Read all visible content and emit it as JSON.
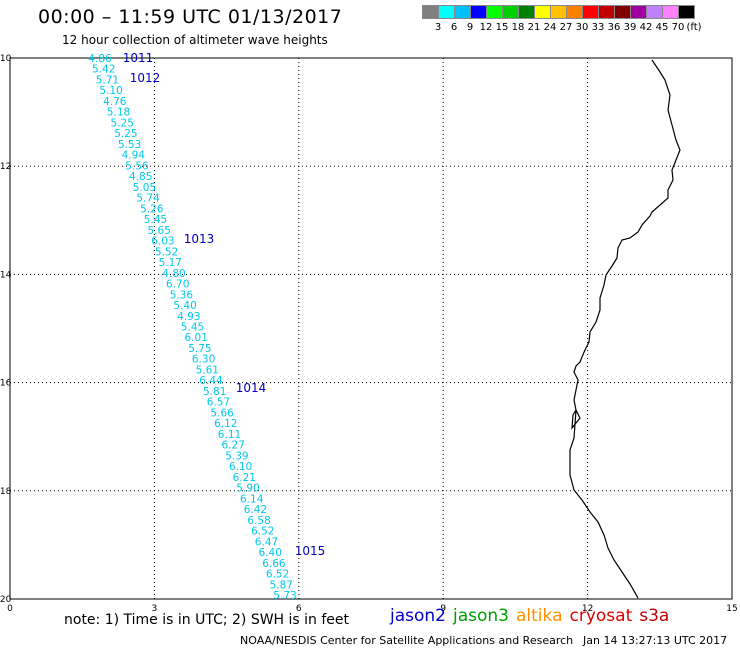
{
  "title": "00:00 – 11:59 UTC 01/13/2017",
  "subtitle": "12 hour collection of altimeter wave heights",
  "colorbar": {
    "colors": [
      "#808080",
      "#00ffff",
      "#00c0ff",
      "#0000ff",
      "#00ff00",
      "#00d000",
      "#008000",
      "#ffff00",
      "#ffc000",
      "#ff8000",
      "#ff0000",
      "#c00000",
      "#800000",
      "#a000a0",
      "#c080ff",
      "#ff80ff",
      "#000000"
    ],
    "labels": [
      "3",
      "6",
      "9",
      "12",
      "15",
      "18",
      "21",
      "24",
      "27",
      "30",
      "33",
      "36",
      "39",
      "42",
      "45",
      "70",
      "(ft)"
    ]
  },
  "axes": {
    "x_ticks": [
      "0",
      "3",
      "6",
      "9",
      "12",
      "15"
    ],
    "y_ticks": [
      "-10",
      "-12",
      "-14",
      "-16",
      "-18",
      "-20"
    ],
    "x_range": [
      0,
      15
    ],
    "y_range": [
      -20,
      -10
    ]
  },
  "track_color": "#00c8e8",
  "time_color": "#0000c0",
  "swh_values": [
    "4.86",
    "5.42",
    "5.71",
    "5.10",
    "4.76",
    "5.18",
    "5.25",
    "5.25",
    "5.53",
    "4.94",
    "5.56",
    "4.85",
    "5.05",
    "5.74",
    "5.26",
    "5.45",
    "5.65",
    "6.03",
    "5.52",
    "5.17",
    "4.80",
    "6.70",
    "5.36",
    "5.40",
    "4.93",
    "5.45",
    "6.01",
    "5.75",
    "6.30",
    "5.61",
    "6.44",
    "5.81",
    "6.57",
    "5.66",
    "6.12",
    "6.11",
    "6.27",
    "5.39",
    "6.10",
    "6.21",
    "5.90",
    "6.14",
    "6.42",
    "6.58",
    "6.52",
    "6.47",
    "6.40",
    "6.66",
    "6.52",
    "5.87",
    "5.73"
  ],
  "time_labels": [
    "1011",
    "1012",
    "1013",
    "1014",
    "1015"
  ],
  "note": "note: 1) Time is in UTC; 2) SWH is in feet",
  "legend": [
    {
      "name": "jason2",
      "color": "#0000d0"
    },
    {
      "name": "jason3",
      "color": "#00a000"
    },
    {
      "name": "altika",
      "color": "#ff9000"
    },
    {
      "name": "cryosat",
      "color": "#e00000"
    },
    {
      "name": "s3a",
      "color": "#c00000"
    }
  ],
  "credit": "NOAA/NESDIS Center for Satellite Applications and Research",
  "credit_time": "Jan 14 13:27:13 UTC 2017"
}
